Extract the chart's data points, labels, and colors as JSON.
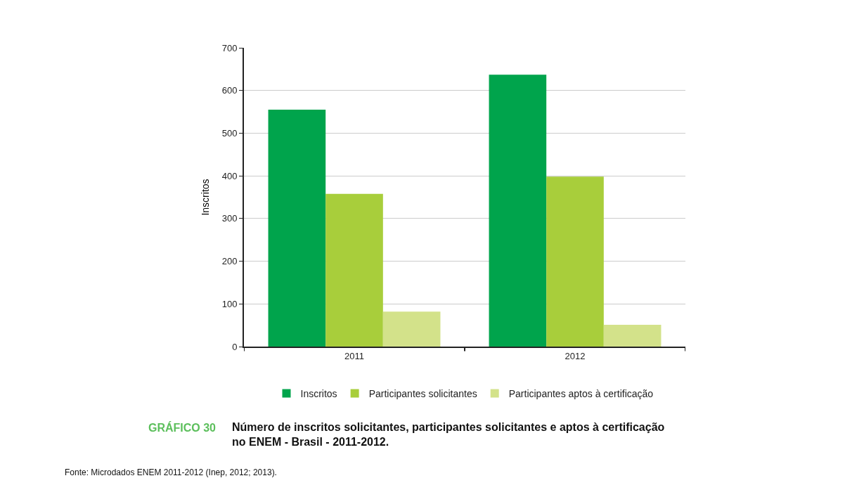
{
  "chart_data": {
    "type": "bar",
    "title": "GRÁFICO 30",
    "subtitle": "Número de inscritos solicitantes, participantes solicitantes e aptos à certificação no ENEM - Brasil - 2011-2012.",
    "ylabel": "Inscritos",
    "categories": [
      "2011",
      "2012"
    ],
    "series": [
      {
        "name": "Inscritos",
        "color": "#00a44c",
        "values": [
          555,
          637
        ]
      },
      {
        "name": "Participantes solicitantes",
        "color": "#a8ce3b",
        "values": [
          358,
          398
        ]
      },
      {
        "name": "Participantes aptos à certificação",
        "color": "#d3e28a",
        "values": [
          82,
          51
        ]
      }
    ],
    "ylim": [
      0,
      700
    ],
    "yticks": [
      0,
      100,
      200,
      300,
      400,
      500,
      600,
      700
    ],
    "grid": "y",
    "legend": "bottom",
    "annotations": [
      "Fonte: Microdados ENEM 2011-2012 (Inep, 2012; 2013)."
    ]
  }
}
